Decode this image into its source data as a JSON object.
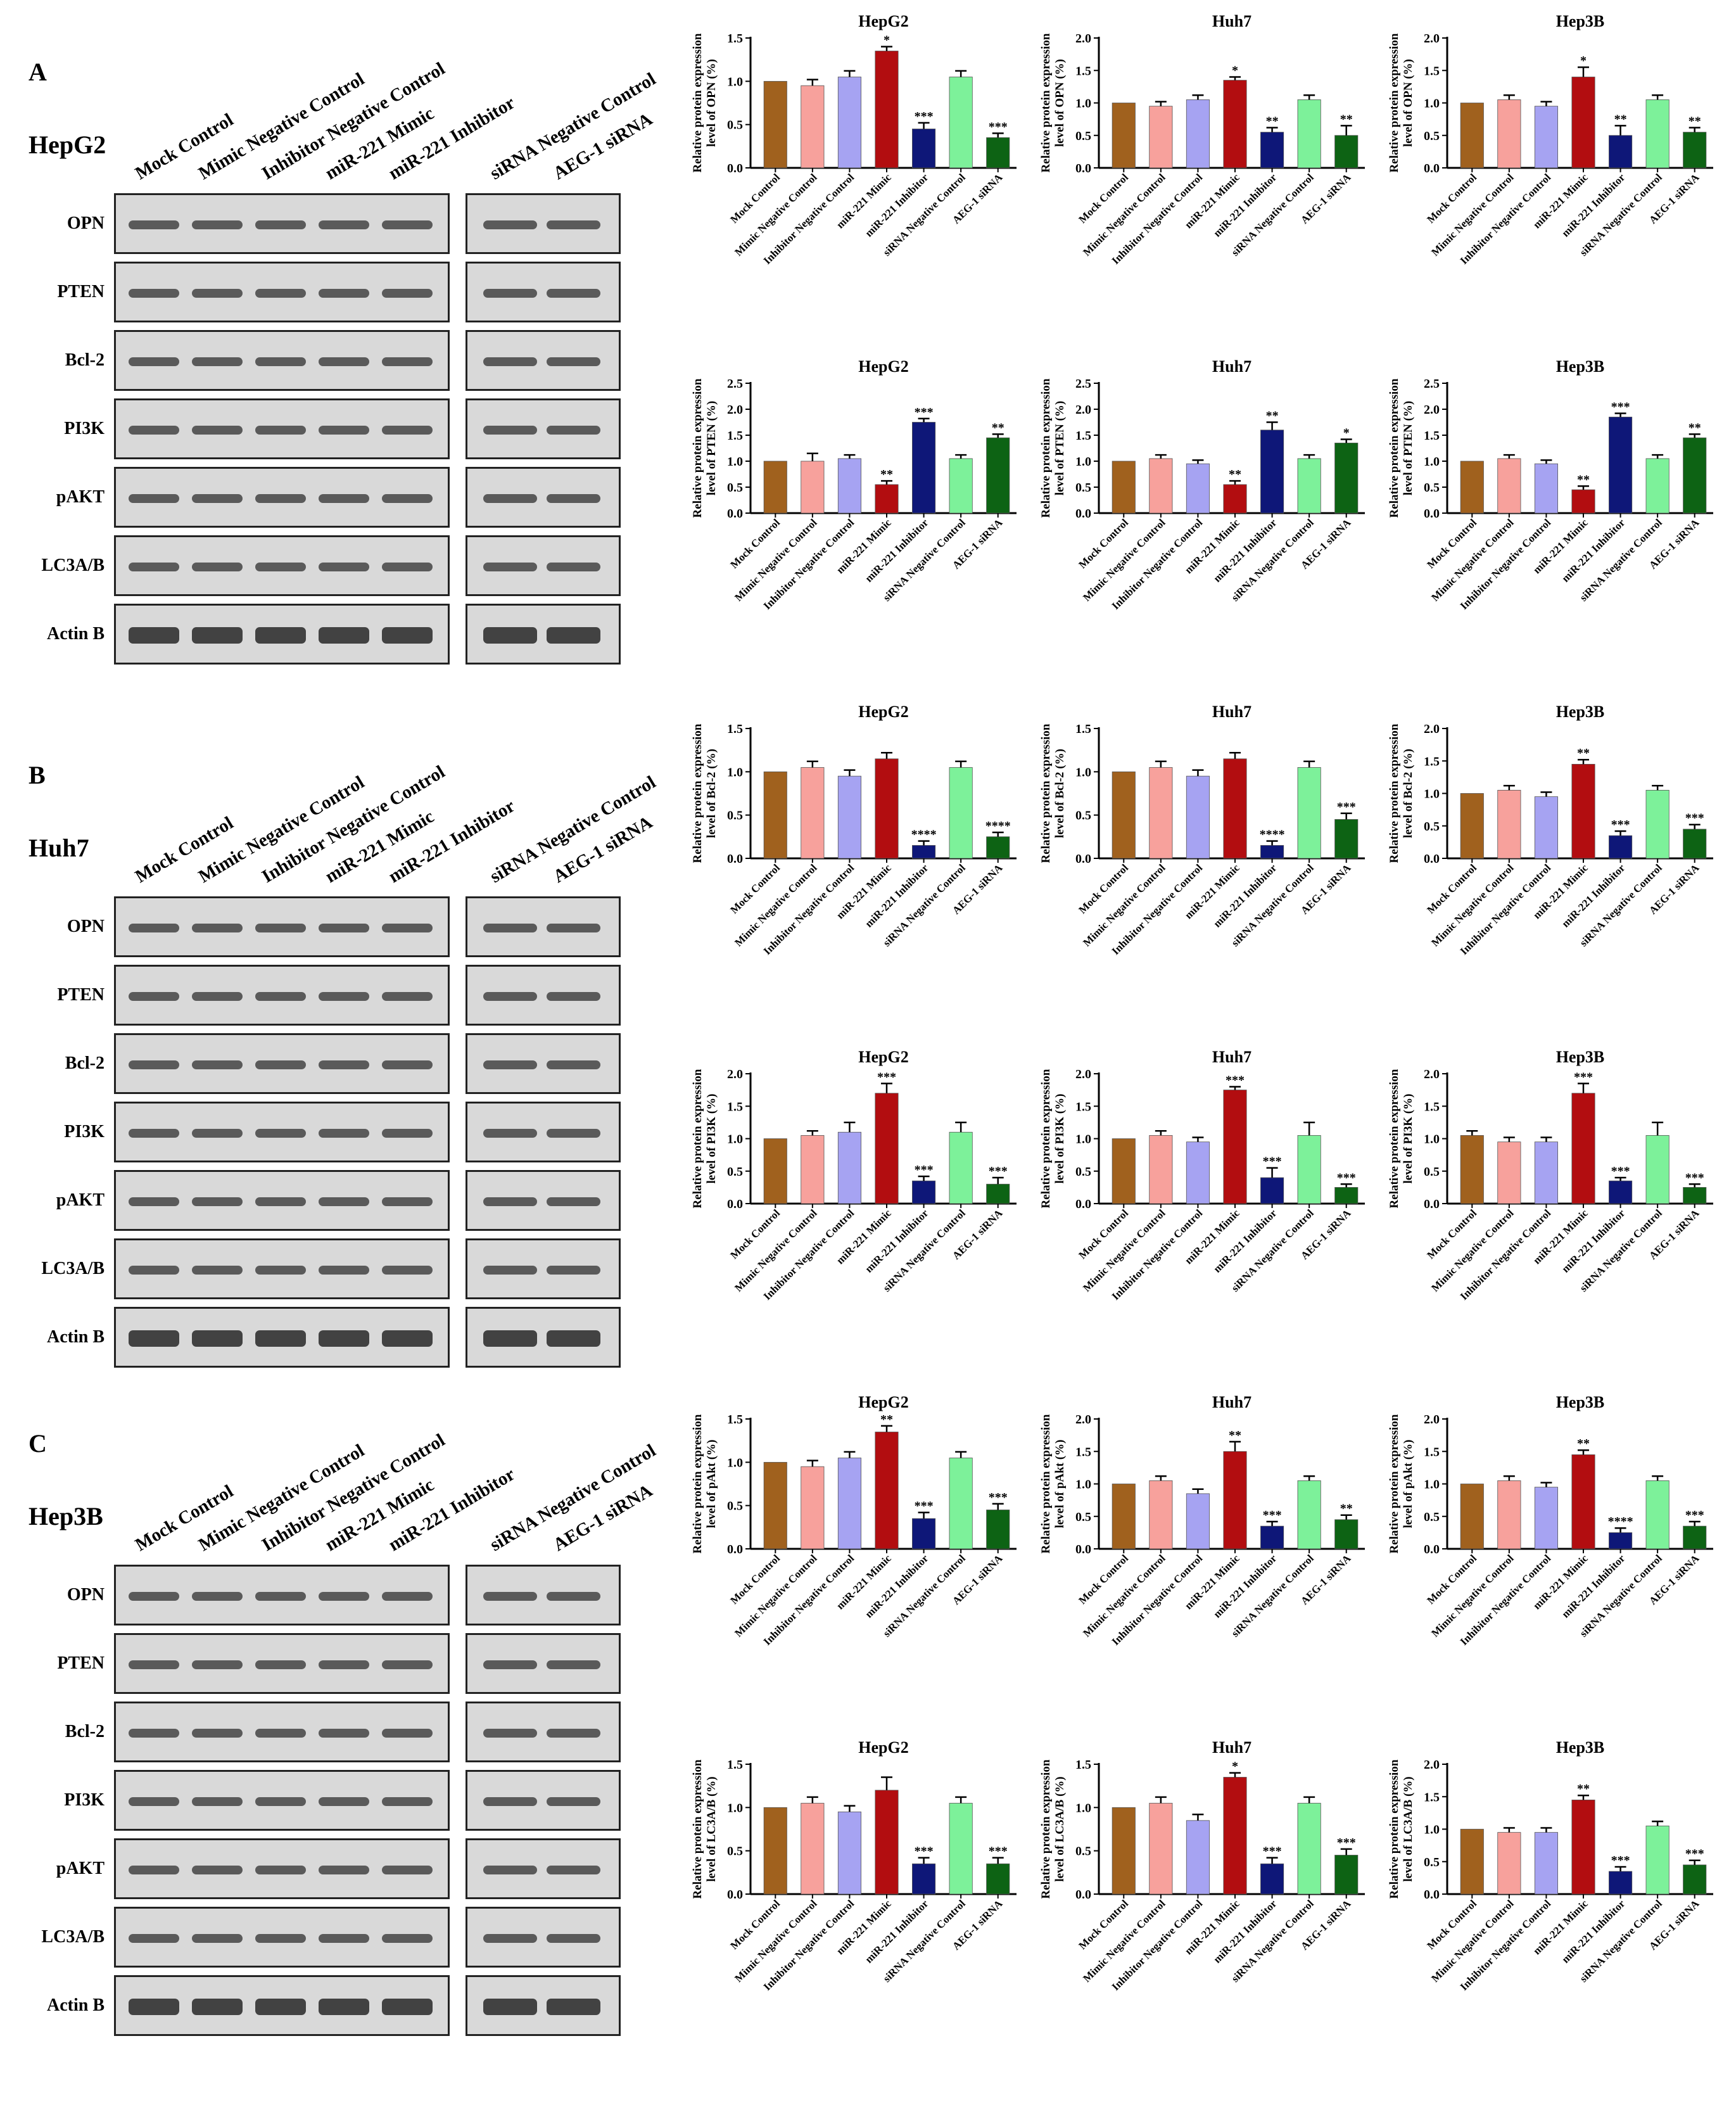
{
  "colors": [
    "#a0611e",
    "#f7a19c",
    "#a6a3f2",
    "#b20d10",
    "#0e1778",
    "#7df19a",
    "#0d6314"
  ],
  "panels": [
    {
      "letter": "A",
      "cell": "HepG2"
    },
    {
      "letter": "B",
      "cell": "Huh7"
    },
    {
      "letter": "C",
      "cell": "Hep3B"
    }
  ],
  "lanes": [
    "Mock Control",
    "Mimic Negative Control",
    "Inhibitor Negative Control",
    "miR-221 Mimic",
    "miR-221 Inhibitor",
    "siRNA Negative Control",
    "AEG-1 siRNA"
  ],
  "proteins": [
    "OPN",
    "PTEN",
    "Bcl-2",
    "PI3K",
    "pAKT",
    "LC3A/B",
    "Actin B"
  ],
  "chart_data": [
    {
      "type": "bar",
      "title": "HepG2",
      "ylabel": "Relative protein expression level of OPN (%)",
      "ylim": [
        0,
        1.5
      ],
      "yticks": [
        "0.0",
        "0.5",
        "1.0",
        "1.5"
      ],
      "categories": [
        "Mock Control",
        "Mimic Negative Control",
        "Inhibitor Negative Control",
        "miR-221 Mimic",
        "miR-221 Inhibitor",
        "siRNA Negative Control",
        "AEG-1 siRNA"
      ],
      "values": [
        1.0,
        0.95,
        1.05,
        1.35,
        0.45,
        1.05,
        0.35
      ],
      "errors": [
        0,
        0.07,
        0.07,
        0.05,
        0.07,
        0.07,
        0.05
      ],
      "stars": [
        "",
        "",
        "",
        "*",
        "***",
        "",
        "***"
      ]
    },
    {
      "type": "bar",
      "title": "Huh7",
      "ylabel": "Relative protein expression level of OPN (%)",
      "ylim": [
        0,
        2.0
      ],
      "yticks": [
        "0.0",
        "0.5",
        "1.0",
        "1.5",
        "2.0"
      ],
      "categories": [
        "Mock Control",
        "Mimic Negative Control",
        "Inhibitor Negative Control",
        "miR-221 Mimic",
        "miR-221 Inhibitor",
        "siRNA Negative Control",
        "AEG-1 siRNA"
      ],
      "values": [
        1.0,
        0.95,
        1.05,
        1.35,
        0.55,
        1.05,
        0.5
      ],
      "errors": [
        0,
        0.07,
        0.07,
        0.05,
        0.07,
        0.07,
        0.15
      ],
      "stars": [
        "",
        "",
        "",
        "*",
        "**",
        "",
        "**"
      ]
    },
    {
      "type": "bar",
      "title": "Hep3B",
      "ylabel": "Relative protein expression level of OPN (%)",
      "ylim": [
        0,
        2.0
      ],
      "yticks": [
        "0.0",
        "0.5",
        "1.0",
        "1.5",
        "2.0"
      ],
      "categories": [
        "Mock Control",
        "Mimic Negative Control",
        "Inhibitor Negative Control",
        "miR-221 Mimic",
        "miR-221 Inhibitor",
        "siRNA Negative Control",
        "AEG-1 siRNA"
      ],
      "values": [
        1.0,
        1.05,
        0.95,
        1.4,
        0.5,
        1.05,
        0.55
      ],
      "errors": [
        0,
        0.07,
        0.07,
        0.15,
        0.15,
        0.07,
        0.07
      ],
      "stars": [
        "",
        "",
        "",
        "*",
        "**",
        "",
        "**"
      ]
    },
    {
      "type": "bar",
      "title": "HepG2",
      "ylabel": "Relative protein expression level of PTEN (%)",
      "ylim": [
        0,
        2.5
      ],
      "yticks": [
        "0.0",
        "0.5",
        "1.0",
        "1.5",
        "2.0",
        "2.5"
      ],
      "categories": [
        "Mock Control",
        "Mimic Negative Control",
        "Inhibitor Negative Control",
        "miR-221 Mimic",
        "miR-221 Inhibitor",
        "siRNA Negative Control",
        "AEG-1 siRNA"
      ],
      "values": [
        1.0,
        1.0,
        1.05,
        0.55,
        1.75,
        1.05,
        1.45
      ],
      "errors": [
        0,
        0.15,
        0.07,
        0.07,
        0.07,
        0.07,
        0.07
      ],
      "stars": [
        "",
        "",
        "",
        "**",
        "***",
        "",
        "**"
      ]
    },
    {
      "type": "bar",
      "title": "Huh7",
      "ylabel": "Relative protein expression level of PTEN (%)",
      "ylim": [
        0,
        2.5
      ],
      "yticks": [
        "0.0",
        "0.5",
        "1.0",
        "1.5",
        "2.0",
        "2.5"
      ],
      "categories": [
        "Mock Control",
        "Mimic Negative Control",
        "Inhibitor Negative Control",
        "miR-221 Mimic",
        "miR-221 Inhibitor",
        "siRNA Negative Control",
        "AEG-1 siRNA"
      ],
      "values": [
        1.0,
        1.05,
        0.95,
        0.55,
        1.6,
        1.05,
        1.35
      ],
      "errors": [
        0,
        0.07,
        0.07,
        0.07,
        0.15,
        0.07,
        0.07
      ],
      "stars": [
        "",
        "",
        "",
        "**",
        "**",
        "",
        "*"
      ]
    },
    {
      "type": "bar",
      "title": "Hep3B",
      "ylabel": "Relative protein expression level of PTEN (%)",
      "ylim": [
        0,
        2.5
      ],
      "yticks": [
        "0.0",
        "0.5",
        "1.0",
        "1.5",
        "2.0",
        "2.5"
      ],
      "categories": [
        "Mock Control",
        "Mimic Negative Control",
        "Inhibitor Negative Control",
        "miR-221 Mimic",
        "miR-221 Inhibitor",
        "siRNA Negative Control",
        "AEG-1 siRNA"
      ],
      "values": [
        1.0,
        1.05,
        0.95,
        0.45,
        1.85,
        1.05,
        1.45
      ],
      "errors": [
        0,
        0.07,
        0.07,
        0.07,
        0.07,
        0.07,
        0.07
      ],
      "stars": [
        "",
        "",
        "",
        "**",
        "***",
        "",
        "**"
      ]
    },
    {
      "type": "bar",
      "title": "HepG2",
      "ylabel": "Relative protein expression level of Bcl-2 (%)",
      "ylim": [
        0,
        1.5
      ],
      "yticks": [
        "0.0",
        "0.5",
        "1.0",
        "1.5"
      ],
      "categories": [
        "Mock Control",
        "Mimic Negative Control",
        "Inhibitor Negative Control",
        "miR-221 Mimic",
        "miR-221 Inhibitor",
        "siRNA Negative Control",
        "AEG-1 siRNA"
      ],
      "values": [
        1.0,
        1.05,
        0.95,
        1.15,
        0.15,
        1.05,
        0.25
      ],
      "errors": [
        0,
        0.07,
        0.07,
        0.07,
        0.05,
        0.07,
        0.05
      ],
      "stars": [
        "",
        "",
        "",
        "",
        "****",
        "",
        "****"
      ]
    },
    {
      "type": "bar",
      "title": "Huh7",
      "ylabel": "Relative protein expression level of Bcl-2 (%)",
      "ylim": [
        0,
        1.5
      ],
      "yticks": [
        "0.0",
        "0.5",
        "1.0",
        "1.5"
      ],
      "categories": [
        "Mock Control",
        "Mimic Negative Control",
        "Inhibitor Negative Control",
        "miR-221 Mimic",
        "miR-221 Inhibitor",
        "siRNA Negative Control",
        "AEG-1 siRNA"
      ],
      "values": [
        1.0,
        1.05,
        0.95,
        1.15,
        0.15,
        1.05,
        0.45
      ],
      "errors": [
        0,
        0.07,
        0.07,
        0.07,
        0.05,
        0.07,
        0.07
      ],
      "stars": [
        "",
        "",
        "",
        "",
        "****",
        "",
        "***"
      ]
    },
    {
      "type": "bar",
      "title": "Hep3B",
      "ylabel": "Relative protein expression level of Bcl-2 (%)",
      "ylim": [
        0,
        2.0
      ],
      "yticks": [
        "0.0",
        "0.5",
        "1.0",
        "1.5",
        "2.0"
      ],
      "categories": [
        "Mock Control",
        "Mimic Negative Control",
        "Inhibitor Negative Control",
        "miR-221 Mimic",
        "miR-221 Inhibitor",
        "siRNA Negative Control",
        "AEG-1 siRNA"
      ],
      "values": [
        1.0,
        1.05,
        0.95,
        1.45,
        0.35,
        1.05,
        0.45
      ],
      "errors": [
        0,
        0.07,
        0.07,
        0.07,
        0.07,
        0.07,
        0.07
      ],
      "stars": [
        "",
        "",
        "",
        "**",
        "***",
        "",
        "***"
      ]
    },
    {
      "type": "bar",
      "title": "HepG2",
      "ylabel": "Relative protein expression level of PI3K (%)",
      "ylim": [
        0,
        2.0
      ],
      "yticks": [
        "0.0",
        "0.5",
        "1.0",
        "1.5",
        "2.0"
      ],
      "categories": [
        "Mock Control",
        "Mimic Negative Control",
        "Inhibitor Negative Control",
        "miR-221 Mimic",
        "miR-221 Inhibitor",
        "siRNA Negative Control",
        "AEG-1 siRNA"
      ],
      "values": [
        1.0,
        1.05,
        1.1,
        1.7,
        0.35,
        1.1,
        0.3
      ],
      "errors": [
        0,
        0.07,
        0.15,
        0.15,
        0.07,
        0.15,
        0.1
      ],
      "stars": [
        "",
        "",
        "",
        "***",
        "***",
        "",
        "***"
      ]
    },
    {
      "type": "bar",
      "title": "Huh7",
      "ylabel": "Relative protein expression level of PI3K (%)",
      "ylim": [
        0,
        2.0
      ],
      "yticks": [
        "0.0",
        "0.5",
        "1.0",
        "1.5",
        "2.0"
      ],
      "categories": [
        "Mock Control",
        "Mimic Negative Control",
        "Inhibitor Negative Control",
        "miR-221 Mimic",
        "miR-221 Inhibitor",
        "siRNA Negative Control",
        "AEG-1 siRNA"
      ],
      "values": [
        1.0,
        1.05,
        0.95,
        1.75,
        0.4,
        1.05,
        0.25
      ],
      "errors": [
        0,
        0.07,
        0.07,
        0.05,
        0.15,
        0.2,
        0.05
      ],
      "stars": [
        "",
        "",
        "",
        "***",
        "***",
        "",
        "***"
      ]
    },
    {
      "type": "bar",
      "title": "Hep3B",
      "ylabel": "Relative protein expression level of PI3K (%)",
      "ylim": [
        0,
        2.0
      ],
      "yticks": [
        "0.0",
        "0.5",
        "1.0",
        "1.5",
        "2.0"
      ],
      "categories": [
        "Mock Control",
        "Mimic Negative Control",
        "Inhibitor Negative Control",
        "miR-221 Mimic",
        "miR-221 Inhibitor",
        "siRNA Negative Control",
        "AEG-1 siRNA"
      ],
      "values": [
        1.05,
        0.95,
        0.95,
        1.7,
        0.35,
        1.05,
        0.25
      ],
      "errors": [
        0.07,
        0.07,
        0.07,
        0.15,
        0.05,
        0.2,
        0.05
      ],
      "stars": [
        "",
        "",
        "",
        "***",
        "***",
        "",
        "***"
      ]
    },
    {
      "type": "bar",
      "title": "HepG2",
      "ylabel": "Relative protein expression level of pAkt (%)",
      "ylim": [
        0,
        1.5
      ],
      "yticks": [
        "0.0",
        "0.5",
        "1.0",
        "1.5"
      ],
      "categories": [
        "Mock Control",
        "Mimic Negative Control",
        "Inhibitor Negative Control",
        "miR-221 Mimic",
        "miR-221 Inhibitor",
        "siRNA Negative Control",
        "AEG-1 siRNA"
      ],
      "values": [
        1.0,
        0.95,
        1.05,
        1.35,
        0.35,
        1.05,
        0.45
      ],
      "errors": [
        0,
        0.07,
        0.07,
        0.07,
        0.07,
        0.07,
        0.07
      ],
      "stars": [
        "",
        "",
        "",
        "**",
        "***",
        "",
        "***"
      ]
    },
    {
      "type": "bar",
      "title": "Huh7",
      "ylabel": "Relative protein expression level of pAkt (%)",
      "ylim": [
        0,
        2.0
      ],
      "yticks": [
        "0.0",
        "0.5",
        "1.0",
        "1.5",
        "2.0"
      ],
      "categories": [
        "Mock Control",
        "Mimic Negative Control",
        "Inhibitor Negative Control",
        "miR-221 Mimic",
        "miR-221 Inhibitor",
        "siRNA Negative Control",
        "AEG-1 siRNA"
      ],
      "values": [
        1.0,
        1.05,
        0.85,
        1.5,
        0.35,
        1.05,
        0.45
      ],
      "errors": [
        0,
        0.07,
        0.07,
        0.15,
        0.07,
        0.07,
        0.07
      ],
      "stars": [
        "",
        "",
        "",
        "**",
        "***",
        "",
        "**"
      ]
    },
    {
      "type": "bar",
      "title": "Hep3B",
      "ylabel": "Relative protein expression level of pAkt (%)",
      "ylim": [
        0,
        2.0
      ],
      "yticks": [
        "0.0",
        "0.5",
        "1.0",
        "1.5",
        "2.0"
      ],
      "categories": [
        "Mock Control",
        "Mimic Negative Control",
        "Inhibitor Negative Control",
        "miR-221 Mimic",
        "miR-221 Inhibitor",
        "siRNA Negative Control",
        "AEG-1 siRNA"
      ],
      "values": [
        1.0,
        1.05,
        0.95,
        1.45,
        0.25,
        1.05,
        0.35
      ],
      "errors": [
        0,
        0.07,
        0.07,
        0.07,
        0.07,
        0.07,
        0.07
      ],
      "stars": [
        "",
        "",
        "",
        "**",
        "****",
        "",
        "***"
      ]
    },
    {
      "type": "bar",
      "title": "HepG2",
      "ylabel": "Relative protein expression level of LC3A/B (%)",
      "ylim": [
        0,
        1.5
      ],
      "yticks": [
        "0.0",
        "0.5",
        "1.0",
        "1.5"
      ],
      "categories": [
        "Mock Control",
        "Mimic Negative Control",
        "Inhibitor Negative Control",
        "miR-221 Mimic",
        "miR-221 Inhibitor",
        "siRNA Negative Control",
        "AEG-1 siRNA"
      ],
      "values": [
        1.0,
        1.05,
        0.95,
        1.2,
        0.35,
        1.05,
        0.35
      ],
      "errors": [
        0,
        0.07,
        0.07,
        0.15,
        0.07,
        0.07,
        0.07
      ],
      "stars": [
        "",
        "",
        "",
        "",
        "***",
        "",
        "***"
      ]
    },
    {
      "type": "bar",
      "title": "Huh7",
      "ylabel": "Relative protein expression level of LC3A/B (%)",
      "ylim": [
        0,
        1.5
      ],
      "yticks": [
        "0.0",
        "0.5",
        "1.0",
        "1.5"
      ],
      "categories": [
        "Mock Control",
        "Mimic Negative Control",
        "Inhibitor Negative Control",
        "miR-221 Mimic",
        "miR-221 Inhibitor",
        "siRNA Negative Control",
        "AEG-1 siRNA"
      ],
      "values": [
        1.0,
        1.05,
        0.85,
        1.35,
        0.35,
        1.05,
        0.45
      ],
      "errors": [
        0,
        0.07,
        0.07,
        0.05,
        0.07,
        0.07,
        0.07
      ],
      "stars": [
        "",
        "",
        "",
        "*",
        "***",
        "",
        "***"
      ]
    },
    {
      "type": "bar",
      "title": "Hep3B",
      "ylabel": "Relative protein expression level of LC3A/B (%)",
      "ylim": [
        0,
        2.0
      ],
      "yticks": [
        "0.0",
        "0.5",
        "1.0",
        "1.5",
        "2.0"
      ],
      "categories": [
        "Mock Control",
        "Mimic Negative Control",
        "Inhibitor Negative Control",
        "miR-221 Mimic",
        "miR-221 Inhibitor",
        "siRNA Negative Control",
        "AEG-1 siRNA"
      ],
      "values": [
        1.0,
        0.95,
        0.95,
        1.45,
        0.35,
        1.05,
        0.45
      ],
      "errors": [
        0,
        0.07,
        0.07,
        0.07,
        0.07,
        0.07,
        0.07
      ],
      "stars": [
        "",
        "",
        "",
        "**",
        "***",
        "",
        "***"
      ]
    }
  ]
}
